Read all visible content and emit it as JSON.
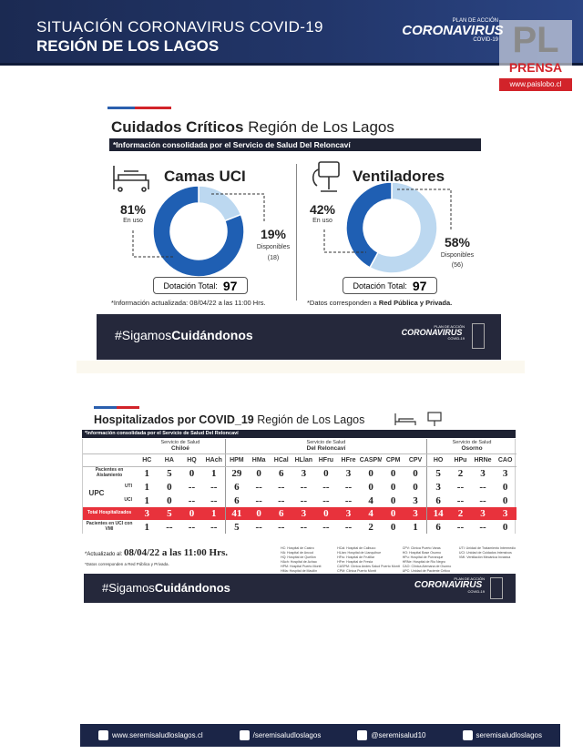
{
  "header": {
    "title": "SITUACIÓN CORONAVIRUS COVID-19",
    "subtitle": "REGIÓN DE LOS LAGOS",
    "logo_top": "PLAN DE ACCIÓN",
    "logo": "CORONAVIRUS",
    "logo_bottom": "COVID-19"
  },
  "watermark": {
    "mark": "PL",
    "name": "PRENSA",
    "url": "www.paislobo.cl"
  },
  "critical_care": {
    "title_bold": "Cuidados Críticos",
    "title_rest": "Región de Los Lagos",
    "subtitle": "*Información consolidada por el Servicio de Salud Del Reloncaví",
    "beds": {
      "title": "Camas UCI",
      "in_use": {
        "value": 81,
        "label": "81%"
      },
      "in_use_label": "En uso",
      "available": {
        "value": 19,
        "label": "19%"
      },
      "available_label": "Disponibles",
      "available_count": "(18)",
      "total_label": "Dotación Total:",
      "total": "97"
    },
    "ventilators": {
      "title": "Ventiladores",
      "in_use": {
        "value": 42,
        "label": "42%"
      },
      "in_use_label": "En uso",
      "available": {
        "value": 58,
        "label": "58%"
      },
      "available_label": "Disponibles",
      "available_count": "(56)",
      "total_label": "Dotación Total:",
      "total": "97"
    },
    "note_left": "*Información actualizada: 08/04/22 a las 11:00 Hrs.",
    "note_right_start": "*Datos corresponden a ",
    "note_right_bold": "Red Pública y Privada.",
    "banner_tag": "#Sigamos",
    "banner_bold": "Cuidándonos"
  },
  "hospitalized": {
    "title_bold": "Hospitalizados por COVID_19",
    "title_rest": "Región de Los Lagos",
    "subtitle": "*Información consolidada por el Servicio de Salud Del Reloncaví",
    "groups": [
      {
        "label": "Servicio de Salud",
        "name": "Chiloé",
        "columns": [
          "HC",
          "HA",
          "HQ",
          "HAch"
        ]
      },
      {
        "label": "Servicio de Salud",
        "name": "Del Reloncaví",
        "columns": [
          "HPM",
          "HMa",
          "HCal",
          "HLlan",
          "HFru",
          "HFre",
          "CASPM",
          "CPM",
          "CPV"
        ]
      },
      {
        "label": "Servicio de Salud",
        "name": "Osorno",
        "columns": [
          "HO",
          "HPu",
          "HRNe",
          "CAO"
        ]
      }
    ],
    "upc_label": "UPC",
    "rows": [
      {
        "label": "Pacientes en Aislamiento",
        "values": [
          "1",
          "5",
          "0",
          "1",
          "29",
          "0",
          "6",
          "3",
          "0",
          "3",
          "0",
          "0",
          "0",
          "5",
          "2",
          "3",
          "3"
        ]
      },
      {
        "label": "UTI",
        "values": [
          "1",
          "0",
          "--",
          "--",
          "6",
          "--",
          "--",
          "--",
          "--",
          "--",
          "0",
          "0",
          "0",
          "3",
          "--",
          "--",
          "0"
        ]
      },
      {
        "label": "UCI",
        "values": [
          "1",
          "0",
          "--",
          "--",
          "6",
          "--",
          "--",
          "--",
          "--",
          "--",
          "4",
          "0",
          "3",
          "6",
          "--",
          "--",
          "0"
        ]
      },
      {
        "label": "Total Hospitalizados",
        "values": [
          "3",
          "5",
          "0",
          "1",
          "41",
          "0",
          "6",
          "3",
          "0",
          "3",
          "4",
          "0",
          "3",
          "14",
          "2",
          "3",
          "3"
        ]
      },
      {
        "label": "Pacientes en UCI con VMI",
        "values": [
          "1",
          "--",
          "--",
          "--",
          "5",
          "--",
          "--",
          "--",
          "--",
          "--",
          "2",
          "0",
          "1",
          "6",
          "--",
          "--",
          "0"
        ]
      }
    ],
    "note_label": "*Actualizado al:",
    "note_date": "08/04/22 a las 11:00 Hrs.",
    "note_source": "*Datos corresponden a Red Pública y Privada.",
    "legend": [
      "HC: Hospital de Castro",
      "HA: Hospital de Ancud",
      "HQ: Hospital de Quellón",
      "HAch: Hospital de Achao",
      "HPM: Hospital Puerto Montt",
      "HMa: Hospital de Maullín",
      "HCal: Hospital de Calbuco",
      "HLlan: Hospital de Llanquihue",
      "HFru: Hospital de Frutillar",
      "HFre: Hospital de Fresia",
      "CASPM: Clínica Andes Salud Puerto Montt",
      "CPM: Clínica Puerto Montt",
      "CPV: Clínica Puerto Varas",
      "HO: Hospital Base Osorno",
      "HPu: Hospital de Purranque",
      "HRNe: Hospital de Río Negro",
      "CAO: Clínica Alemana de Osorno",
      "UPC: Unidad de Paciente Crítico",
      "UTI: Unidad de Tratamiento Intermedio",
      "UCI: Unidad de Cuidados Intensivos",
      "VMI: Ventilación Mecánica Invasiva"
    ],
    "banner_tag": "#Sigamos",
    "banner_bold": "Cuidándonos"
  },
  "footer": {
    "web": "www.seremisaludloslagos.cl",
    "facebook": "/seremisaludloslagos",
    "twitter": "@seremisalud10",
    "instagram": "seremisaludloslagos"
  }
}
